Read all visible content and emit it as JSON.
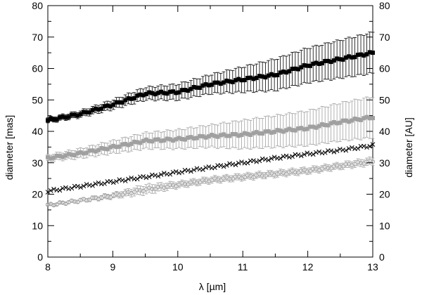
{
  "chart_data": {
    "type": "scatter",
    "xlabel": "λ [µm]",
    "ylabel": "diameter [mas]",
    "y2label": "diameter [AU]",
    "xlim": [
      8,
      13
    ],
    "ylim": [
      0,
      80
    ],
    "y2lim": [
      0,
      80
    ],
    "xticks": [
      8,
      9,
      10,
      11,
      12,
      13
    ],
    "yticks": [
      0,
      10,
      20,
      30,
      40,
      50,
      60,
      70,
      80
    ],
    "grid": false,
    "legend": "none",
    "series": [
      {
        "marker": "filled-square",
        "color": "#000000",
        "x": [
          8.0,
          8.5,
          9.0,
          9.5,
          10.0,
          10.5,
          11.0,
          11.5,
          12.0,
          12.5,
          13.0
        ],
        "y": [
          43.5,
          45.5,
          48.5,
          52.0,
          52.5,
          55.0,
          56.5,
          58.0,
          61.0,
          63.0,
          65.0
        ],
        "yerr": [
          0.8,
          1.0,
          1.5,
          2.0,
          2.5,
          3.0,
          4.0,
          5.0,
          5.5,
          6.0,
          6.5
        ]
      },
      {
        "marker": "filled-square",
        "color": "#a0a0a0",
        "x": [
          8.0,
          8.5,
          9.0,
          9.5,
          10.0,
          10.5,
          11.0,
          11.5,
          12.0,
          12.5,
          13.0
        ],
        "y": [
          31.5,
          33.0,
          35.0,
          37.0,
          37.5,
          38.5,
          39.0,
          40.0,
          41.0,
          43.0,
          44.5
        ],
        "yerr": [
          1.0,
          1.5,
          2.0,
          2.5,
          3.0,
          3.5,
          4.5,
          5.0,
          5.5,
          6.0,
          6.5
        ]
      },
      {
        "marker": "cross",
        "color": "#000000",
        "x": [
          8.0,
          8.5,
          9.0,
          9.5,
          10.0,
          10.5,
          11.0,
          11.5,
          12.0,
          12.5,
          13.0
        ],
        "y": [
          21.0,
          22.5,
          24.0,
          25.5,
          27.0,
          28.5,
          30.0,
          31.5,
          32.8,
          34.0,
          35.5
        ],
        "yerr": [
          0,
          0,
          0,
          0,
          0,
          0,
          0,
          0,
          0,
          0,
          0
        ]
      },
      {
        "marker": "open-circle",
        "color": "#a0a0a0",
        "x": [
          8.0,
          8.5,
          9.0,
          9.5,
          10.0,
          10.5,
          11.0,
          11.5,
          12.0,
          12.5,
          13.0
        ],
        "y": [
          16.5,
          18.0,
          19.5,
          21.5,
          23.0,
          24.5,
          25.5,
          26.5,
          27.5,
          29.0,
          30.5
        ],
        "yerr": [
          0.3,
          0.5,
          0.8,
          1.5,
          1.0,
          1.0,
          1.0,
          1.0,
          1.0,
          1.0,
          1.2
        ]
      }
    ]
  }
}
